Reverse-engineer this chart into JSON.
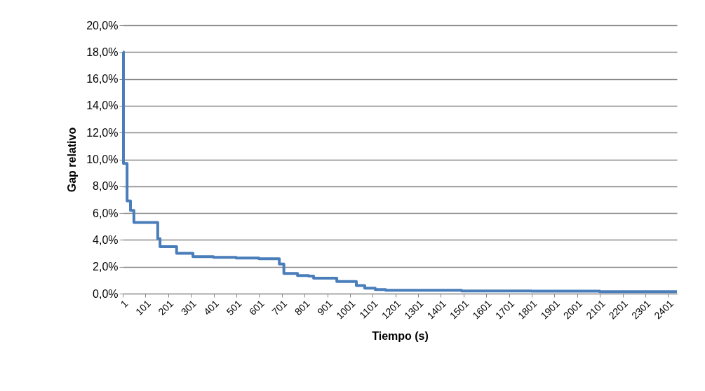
{
  "chart_data": {
    "type": "step",
    "xlabel": "Tiempo (s)",
    "ylabel": "Gap relativo",
    "x": [
      1,
      4,
      20,
      35,
      50,
      155,
      165,
      238,
      310,
      400,
      500,
      600,
      690,
      710,
      770,
      819,
      841,
      943,
      1029,
      1066,
      1112,
      1158,
      1492,
      1800,
      2100,
      2440
    ],
    "series": [
      {
        "color": "#4a7ebb",
        "values": [
          18.0,
          9.7,
          6.9,
          6.2,
          5.3,
          4.1,
          3.5,
          3.0,
          2.75,
          2.7,
          2.65,
          2.6,
          2.2,
          1.5,
          1.35,
          1.3,
          1.15,
          0.9,
          0.6,
          0.4,
          0.3,
          0.25,
          0.2,
          0.18,
          0.15,
          0.15
        ]
      }
    ],
    "xlim": [
      1,
      2440
    ],
    "xticks": [
      1,
      101,
      201,
      301,
      401,
      501,
      601,
      701,
      801,
      901,
      1001,
      1101,
      1201,
      1301,
      1401,
      1501,
      1601,
      1701,
      1801,
      1901,
      2001,
      2101,
      2201,
      2301,
      2401
    ],
    "ylim": [
      0,
      20
    ],
    "yticks": [
      {
        "value": 0,
        "label": "0,0%"
      },
      {
        "value": 2,
        "label": "2,0%"
      },
      {
        "value": 4,
        "label": "4,0%"
      },
      {
        "value": 6,
        "label": "6,0%"
      },
      {
        "value": 8,
        "label": "8,0%"
      },
      {
        "value": 10,
        "label": "10,0%"
      },
      {
        "value": 12,
        "label": "12,0%"
      },
      {
        "value": 14,
        "label": "14,0%"
      },
      {
        "value": 16,
        "label": "16,0%"
      },
      {
        "value": 18,
        "label": "18,0%"
      },
      {
        "value": 20,
        "label": "20,0%"
      }
    ],
    "grid": "y",
    "marker": "none",
    "line_style": "solid"
  }
}
